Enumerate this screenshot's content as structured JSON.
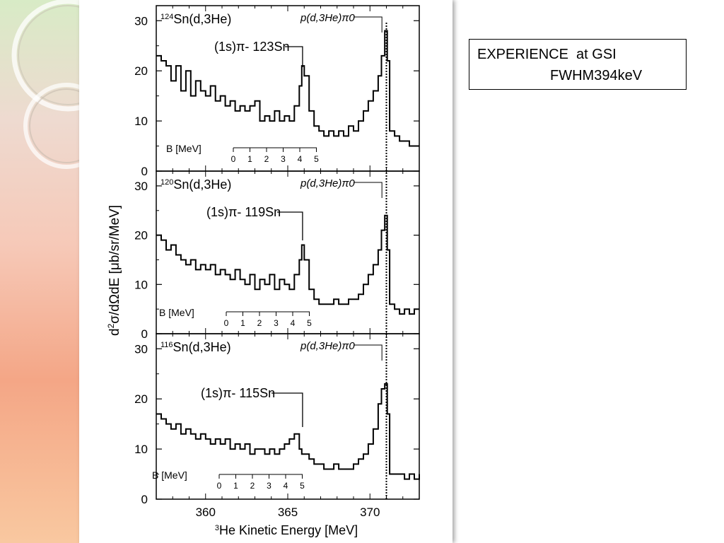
{
  "note": {
    "line1": "EXPERIENCE  at GSI",
    "line2": "FWHM394keV"
  },
  "colors": {
    "decor_band_top": "#d8ebc6",
    "decor_band_mid": "#f6c9b8",
    "decor_band_low": "#f4a686",
    "decor_band_bottom": "#f9c8a0",
    "line": "#000000"
  },
  "chart_data": {
    "type": "line",
    "xlabel": "3He Kinetic Energy [MeV]",
    "ylabel": "d2σ/dΩdE [μb/sr/MeV]",
    "x_tick_labels": [
      "360",
      "365",
      "370"
    ],
    "xlim": [
      357,
      373
    ],
    "ylim": [
      0,
      33
    ],
    "y_ticks": [
      0,
      10,
      20,
      30
    ],
    "threshold_line_x": 371.0,
    "panels": [
      {
        "reaction": "124Sn(d,3He)",
        "peak_label": "(1s)π- 123Sn",
        "qf_label": "p(d,3He)π0",
        "peak_x": 365.9,
        "qf_x": 370.9,
        "b_scale": {
          "label": "B [MeV]",
          "ticks": [
            "0",
            "1",
            "2",
            "3",
            "4",
            "5"
          ]
        },
        "series": [
          {
            "x": [
              357.0,
              357.3,
              357.6,
              357.9,
              358.2,
              358.5,
              358.8,
              359.1,
              359.4,
              359.7,
              360.0,
              360.3,
              360.6,
              360.9,
              361.2,
              361.5,
              361.8,
              362.1,
              362.4,
              362.7,
              363.0,
              363.3,
              363.6,
              363.9,
              364.2,
              364.5,
              364.8,
              365.1,
              365.4,
              365.7,
              365.85,
              366.0,
              366.3,
              366.6,
              366.9,
              367.2,
              367.5,
              367.8,
              368.1,
              368.4,
              368.7,
              369.0,
              369.3,
              369.6,
              369.9,
              370.2,
              370.5,
              370.7,
              370.9,
              371.05,
              371.2,
              371.5,
              371.8,
              372.1,
              372.4,
              372.7,
              373.0
            ],
            "y": [
              23,
              22,
              21,
              18,
              21,
              16,
              20,
              15,
              18,
              16,
              15,
              17,
              14,
              15,
              13,
              14,
              12,
              13,
              12,
              13,
              14,
              10,
              11,
              10,
              12,
              10,
              11,
              10,
              13,
              17,
              21,
              19,
              12,
              9,
              8,
              7,
              8,
              7,
              8,
              7,
              9,
              8,
              10,
              12,
              14,
              16,
              19,
              23,
              28,
              22,
              8,
              7,
              6,
              6,
              5,
              5,
              5
            ]
          }
        ]
      },
      {
        "reaction": "120Sn(d,3He)",
        "peak_label": "(1s)π- 119Sn",
        "qf_label": "p(d,3He)π0",
        "peak_x": 365.9,
        "qf_x": 370.9,
        "b_scale": {
          "label": "B [MeV]",
          "ticks": [
            "0",
            "1",
            "2",
            "3",
            "4",
            "5"
          ]
        },
        "series": [
          {
            "x": [
              357.0,
              357.3,
              357.6,
              357.9,
              358.2,
              358.5,
              358.8,
              359.1,
              359.4,
              359.7,
              360.0,
              360.3,
              360.6,
              360.9,
              361.2,
              361.5,
              361.8,
              362.1,
              362.4,
              362.7,
              363.0,
              363.3,
              363.6,
              363.9,
              364.2,
              364.5,
              364.8,
              365.1,
              365.4,
              365.7,
              365.85,
              366.0,
              366.3,
              366.6,
              366.9,
              367.2,
              367.5,
              367.8,
              368.1,
              368.4,
              368.7,
              369.0,
              369.3,
              369.6,
              369.9,
              370.2,
              370.5,
              370.7,
              370.9,
              371.05,
              371.2,
              371.5,
              371.8,
              372.1,
              372.4,
              372.7,
              373.0
            ],
            "y": [
              20,
              19,
              17,
              18,
              16,
              15,
              14,
              15,
              13,
              14,
              13,
              14,
              12,
              13,
              12,
              11,
              13,
              11,
              10,
              12,
              9,
              11,
              10,
              12,
              9,
              11,
              10,
              9,
              12,
              15,
              18,
              15,
              9,
              7,
              6,
              6,
              6,
              7,
              6,
              6,
              7,
              7,
              8,
              10,
              12,
              14,
              17,
              21,
              24,
              17,
              6,
              5,
              4,
              5,
              4,
              5,
              5
            ]
          }
        ]
      },
      {
        "reaction": "116Sn(d,3He)",
        "peak_label": "(1s)π- 115Sn",
        "qf_label": "p(d,3He)π0",
        "peak_x": 365.9,
        "qf_x": 370.9,
        "b_scale": {
          "label": "B [MeV]",
          "ticks": [
            "0",
            "1",
            "2",
            "3",
            "4",
            "5"
          ]
        },
        "series": [
          {
            "x": [
              357.0,
              357.3,
              357.6,
              357.9,
              358.2,
              358.5,
              358.8,
              359.1,
              359.4,
              359.7,
              360.0,
              360.3,
              360.6,
              360.9,
              361.2,
              361.5,
              361.8,
              362.1,
              362.4,
              362.7,
              363.0,
              363.3,
              363.6,
              363.9,
              364.2,
              364.5,
              364.8,
              365.1,
              365.4,
              365.7,
              365.85,
              366.0,
              366.3,
              366.6,
              366.9,
              367.2,
              367.5,
              367.8,
              368.1,
              368.4,
              368.7,
              369.0,
              369.3,
              369.6,
              369.9,
              370.2,
              370.5,
              370.7,
              370.9,
              371.05,
              371.2,
              371.5,
              371.8,
              372.1,
              372.4,
              372.7,
              373.0
            ],
            "y": [
              17,
              16,
              15,
              14,
              15,
              13,
              14,
              13,
              12,
              13,
              12,
              11,
              12,
              11,
              12,
              10,
              11,
              10,
              11,
              9,
              10,
              10,
              9,
              10,
              9,
              10,
              11,
              12,
              13,
              10,
              9,
              9,
              8,
              7,
              7,
              6,
              6,
              7,
              6,
              6,
              6,
              7,
              8,
              9,
              11,
              14,
              19,
              22,
              23,
              17,
              5,
              5,
              5,
              4,
              5,
              4,
              5
            ]
          }
        ]
      }
    ]
  }
}
